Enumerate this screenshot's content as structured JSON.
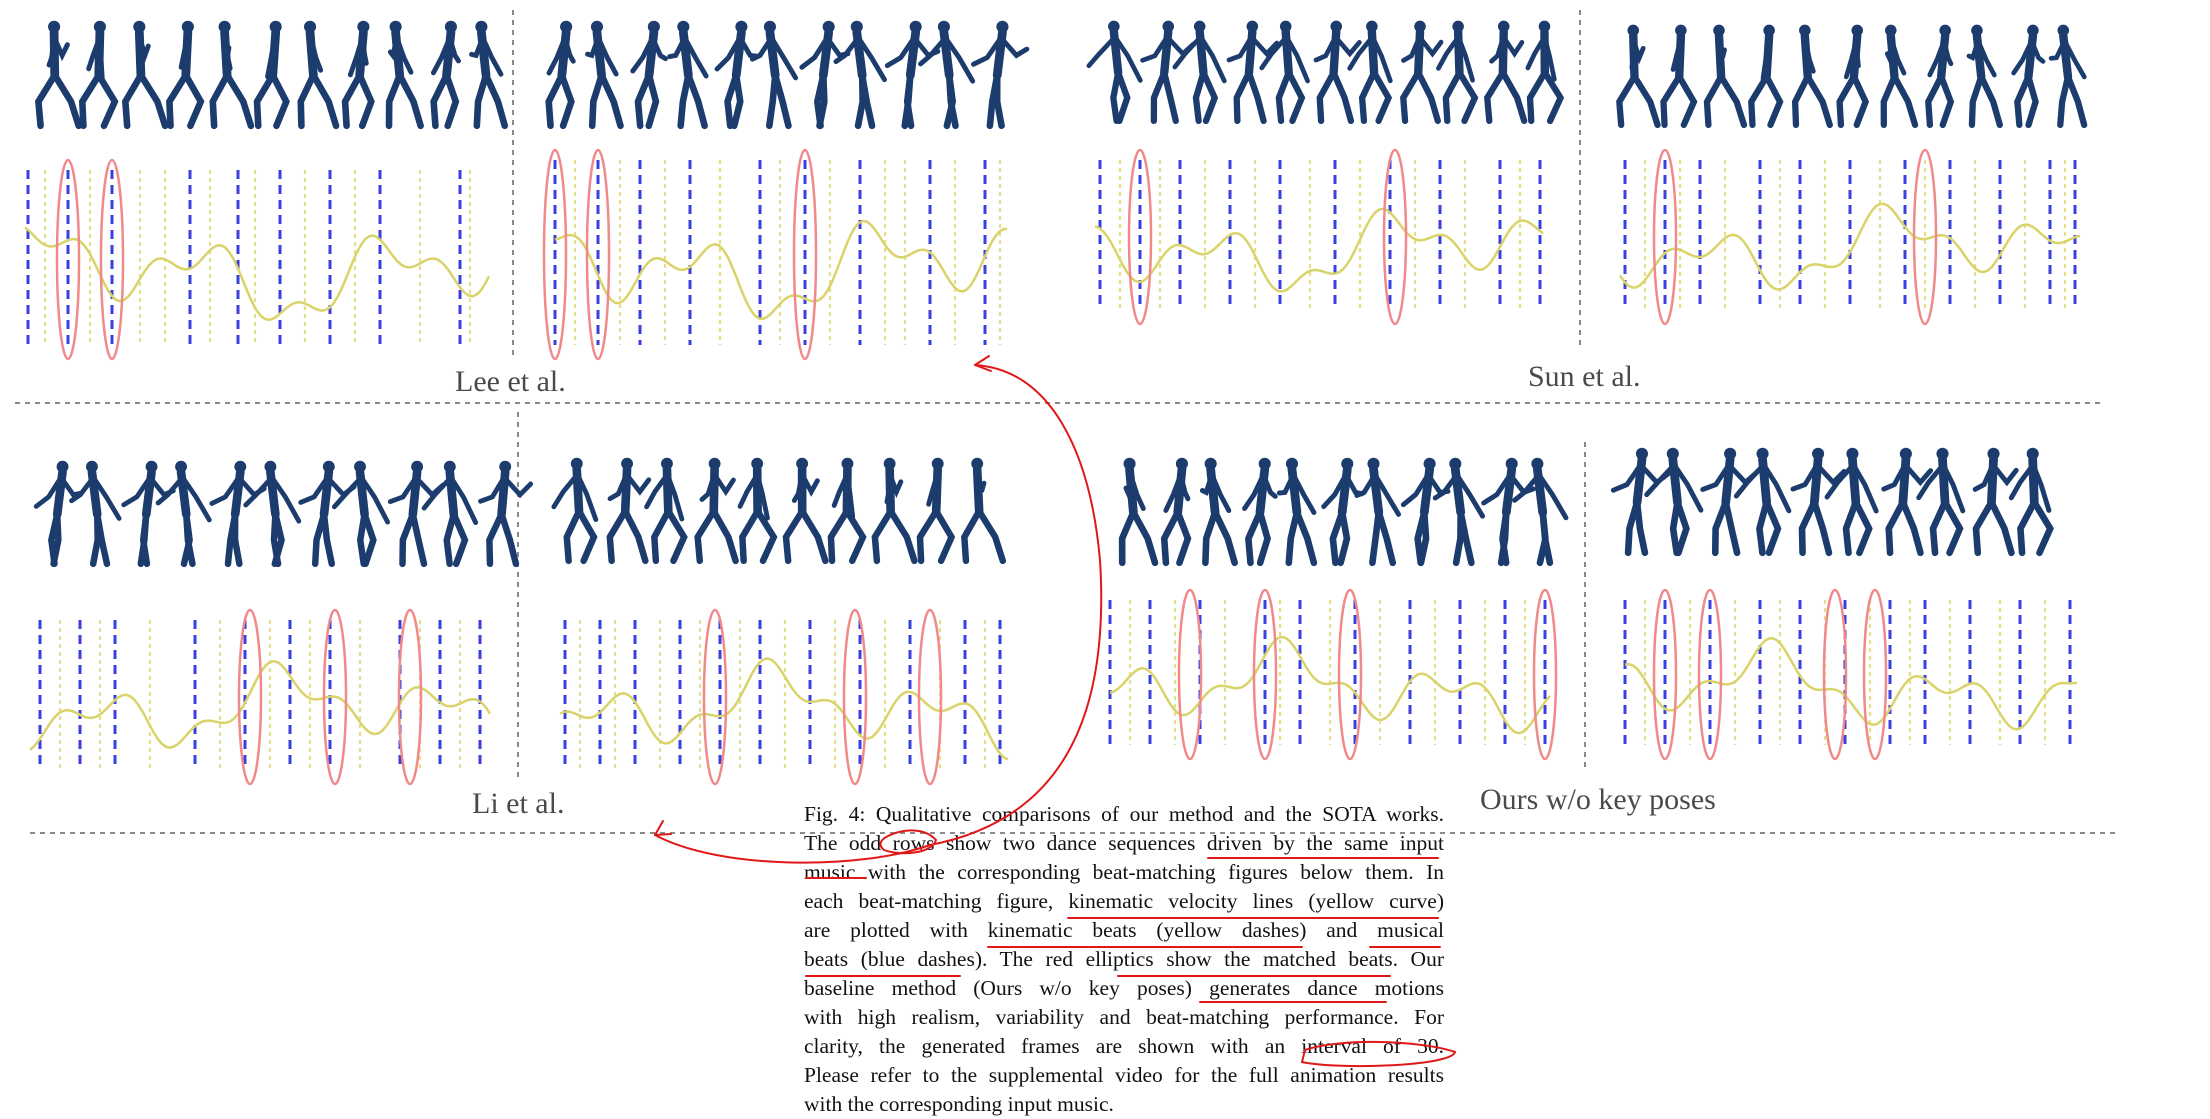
{
  "panel_labels": {
    "top_left": "Lee et al.",
    "top_right": "Sun et al.",
    "bottom_left": "Li et al.",
    "bottom_right": "Ours w/o key poses"
  },
  "caption": {
    "lines": [
      "Fig. 4: Qualitative comparisons of our method and the SOTA works.",
      "The odd rows show two dance sequences driven by the same input",
      "music with the corresponding beat-matching figures below them. In",
      "each beat-matching figure, kinematic velocity lines (yellow curve)",
      "are plotted with kinematic beats (yellow dashes) and musical",
      "beats (blue dashes). The red elliptics show the matched beats. Our",
      "baseline method (Ours w/o key poses) generates dance motions",
      "with high realism, variability and beat-matching performance. For",
      "clarity, the generated frames are shown with an interval of 30.",
      "Please refer to the supplemental video for the full animation results",
      "with the corresponding input music."
    ]
  },
  "colors": {
    "figure_body": "#1d3c6e",
    "velocity_curve": "#d9d36a",
    "kinematic_beat": "#e3df8a",
    "musical_beat": "#3a3fe0",
    "match_ellipse": "#f08a8a",
    "annotation": "#e01818",
    "divider": "#8a8a8a"
  }
}
